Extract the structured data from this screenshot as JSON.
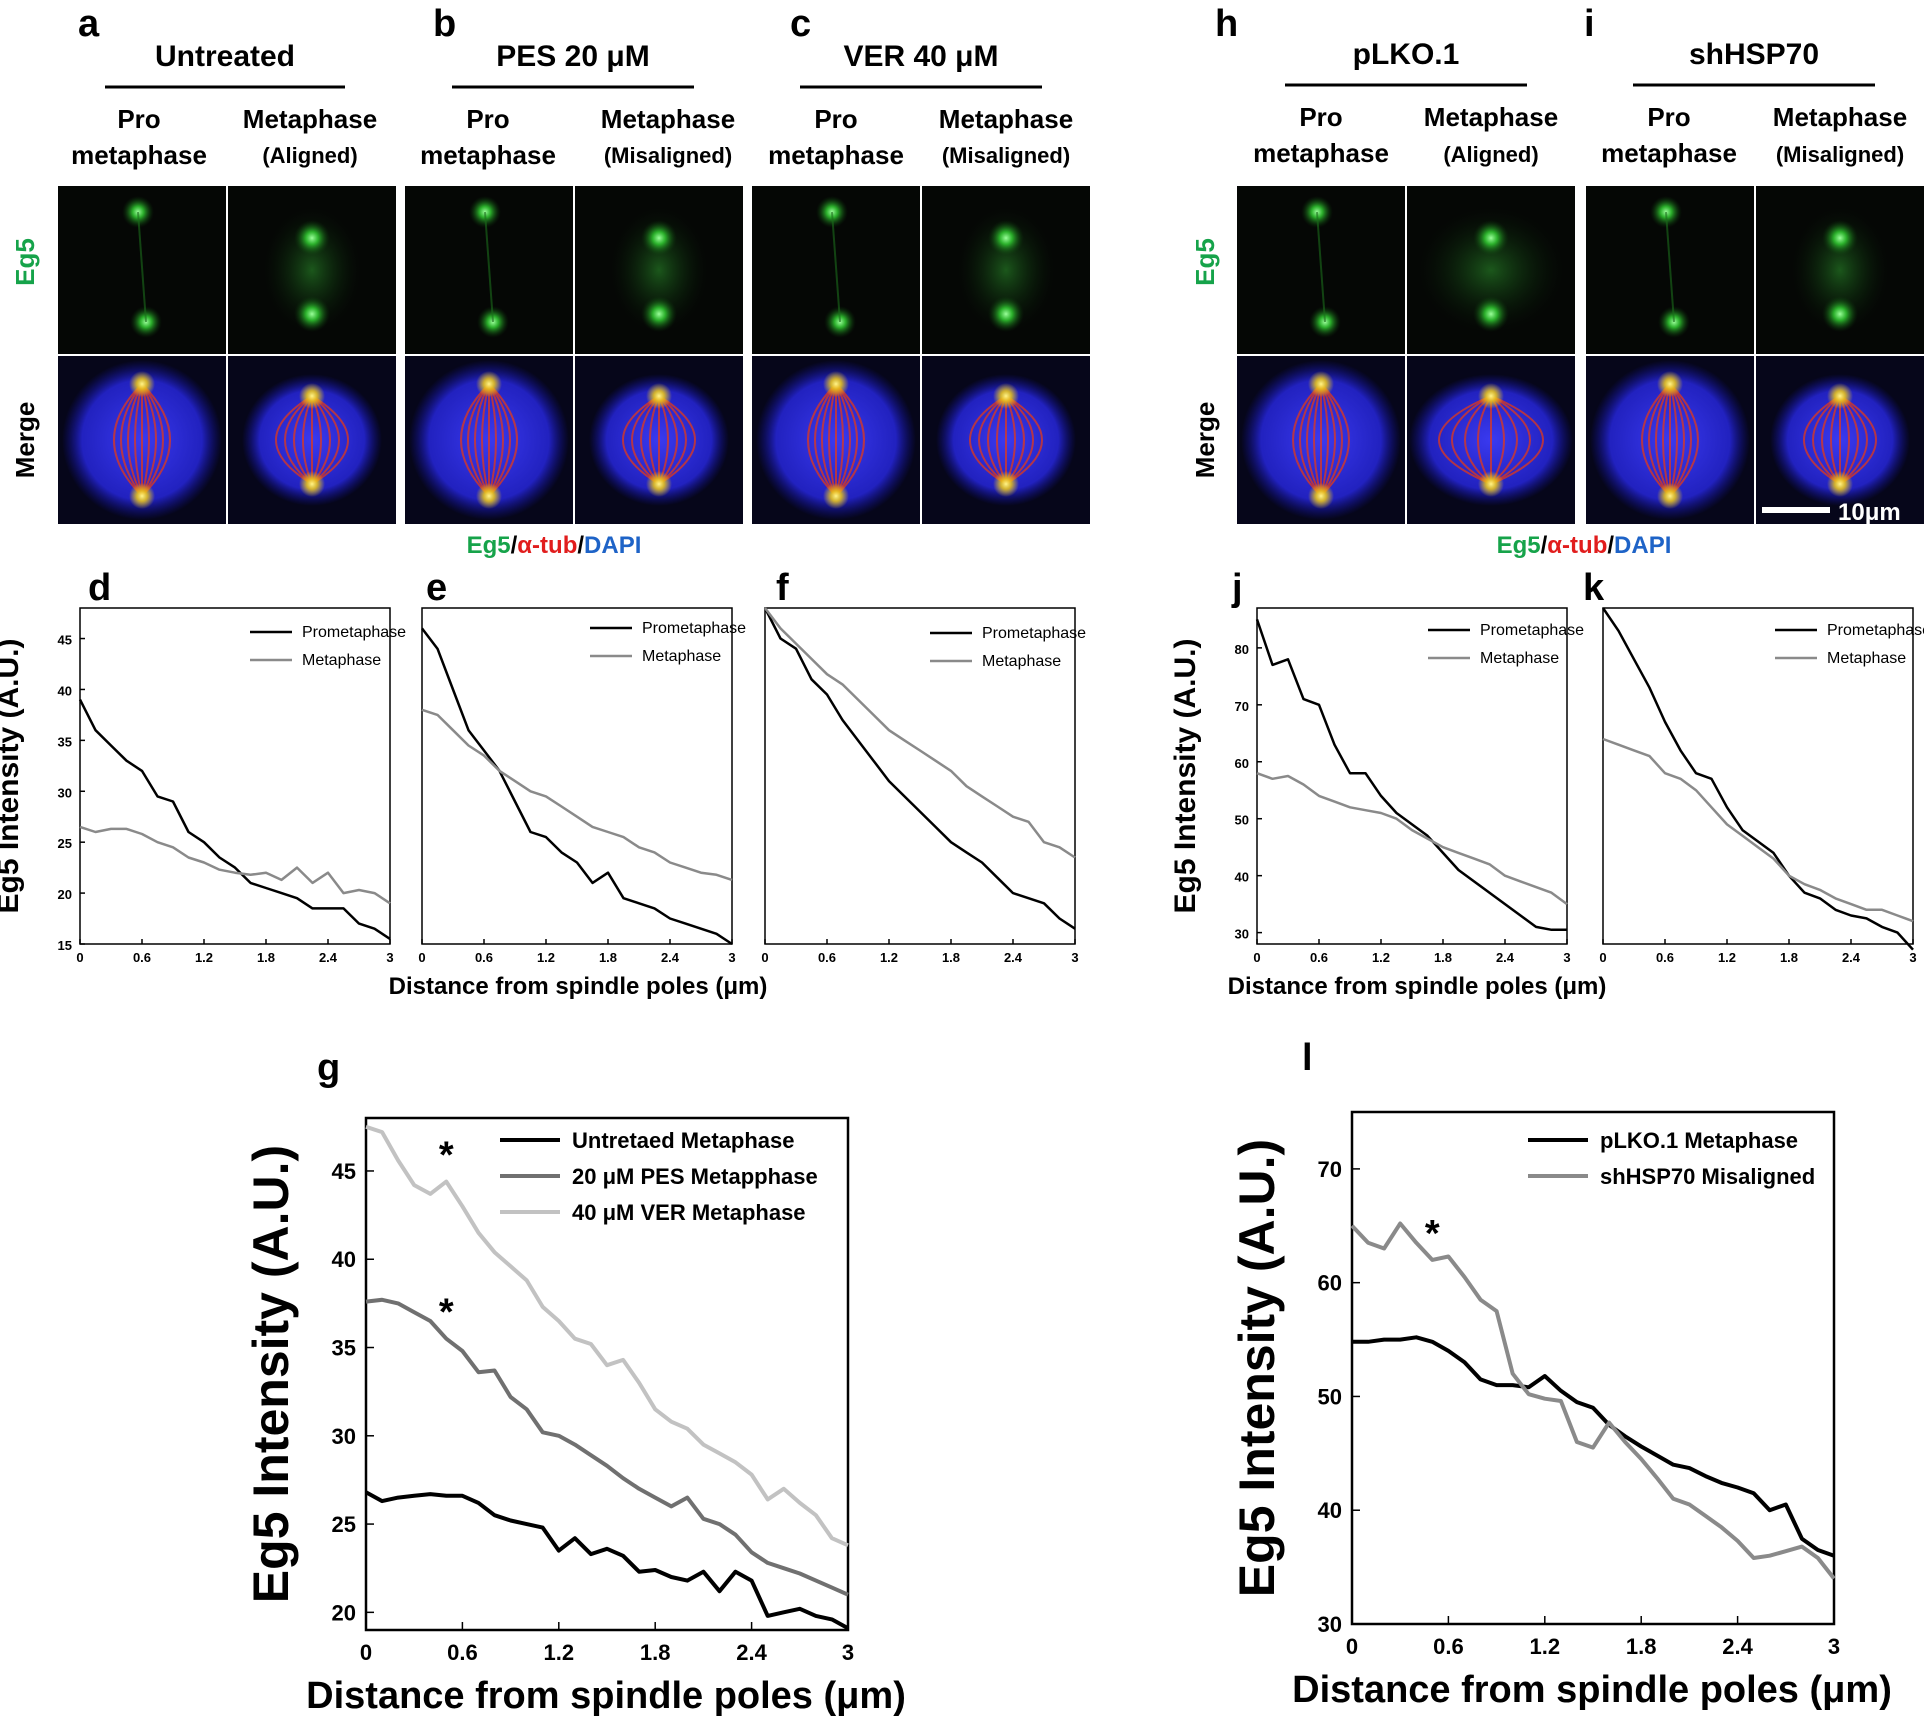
{
  "figure": {
    "panels_top_left": [
      {
        "letter": "a",
        "condition": "Untreated",
        "col1_line1": "Pro",
        "col1_line2": "metaphase",
        "col2_line1": "Metaphase",
        "col2_line2": "(Aligned)"
      },
      {
        "letter": "b",
        "condition": "PES 20 μM",
        "col1_line1": "Pro",
        "col1_line2": "metaphase",
        "col2_line1": "Metaphase",
        "col2_line2": "(Misaligned)"
      },
      {
        "letter": "c",
        "condition": "VER 40 μM",
        "col1_line1": "Pro",
        "col1_line2": "metaphase",
        "col2_line1": "Metaphase",
        "col2_line2": "(Misaligned)"
      }
    ],
    "panels_top_right": [
      {
        "letter": "h",
        "condition": "pLKO.1",
        "col1_line1": "Pro",
        "col1_line2": "metaphase",
        "col2_line1": "Metaphase",
        "col2_line2": "(Aligned)"
      },
      {
        "letter": "i",
        "condition": "shHSP70",
        "col1_line1": "Pro",
        "col1_line2": "metaphase",
        "col2_line1": "Metaphase",
        "col2_line2": "(Misaligned)"
      }
    ],
    "row_labels": {
      "eg5": "Eg5",
      "merge": "Merge"
    },
    "stain_legend": {
      "eg5": "Eg5",
      "slash": "/",
      "tub": "α-tub",
      "dapi": "DAPI"
    },
    "scale_bar": "10μm",
    "colors": {
      "green": "#16a34a",
      "red": "#e11d1d",
      "blue": "#1e63c7"
    }
  },
  "chart_data": [
    {
      "panel": "d",
      "type": "line",
      "ylabel": "Eg5 Intensity (A.U.)",
      "xlabel": "Distance from spindle poles (μm)",
      "xlim": [
        0,
        3
      ],
      "ylim": [
        15,
        48
      ],
      "yticks": [
        15,
        20,
        25,
        30,
        35,
        40,
        45
      ],
      "xticks": [
        "0",
        "0.6",
        "1.2",
        "1.8",
        "2.4",
        "3"
      ],
      "x": [
        0,
        0.15,
        0.3,
        0.45,
        0.6,
        0.75,
        0.9,
        1.05,
        1.2,
        1.35,
        1.5,
        1.65,
        1.8,
        1.95,
        2.1,
        2.25,
        2.4,
        2.55,
        2.7,
        2.85,
        3.0
      ],
      "series": [
        {
          "name": "Prometaphase",
          "color": "#000000",
          "values": [
            39,
            36,
            34.5,
            33,
            32,
            29.5,
            29,
            26,
            25,
            23.5,
            22.5,
            21,
            20.5,
            20,
            19.5,
            18.5,
            18.5,
            18.5,
            17,
            16.5,
            15.5
          ]
        },
        {
          "name": "Metaphase",
          "color": "#8a8a8a",
          "values": [
            26.5,
            26,
            26.3,
            26.3,
            25.8,
            25,
            24.5,
            23.5,
            23,
            22.3,
            22,
            21.8,
            22,
            21.3,
            22.5,
            21,
            22,
            20,
            20.3,
            20,
            19
          ]
        }
      ]
    },
    {
      "panel": "e",
      "type": "line",
      "ylabel": "",
      "xlabel": "",
      "xlim": [
        0,
        3
      ],
      "ylim": [
        15,
        48
      ],
      "yticks": [],
      "xticks": [
        "0",
        "0.6",
        "1.2",
        "1.8",
        "2.4",
        "3"
      ],
      "x": [
        0,
        0.15,
        0.3,
        0.45,
        0.6,
        0.75,
        0.9,
        1.05,
        1.2,
        1.35,
        1.5,
        1.65,
        1.8,
        1.95,
        2.1,
        2.25,
        2.4,
        2.55,
        2.7,
        2.85,
        3.0
      ],
      "series": [
        {
          "name": "Prometaphase",
          "color": "#000000",
          "values": [
            46,
            44,
            40,
            36,
            34,
            32,
            29,
            26,
            25.5,
            24,
            23,
            21,
            22,
            19.5,
            19,
            18.5,
            17.5,
            17,
            16.5,
            16,
            15
          ]
        },
        {
          "name": "Metaphase",
          "color": "#8a8a8a",
          "values": [
            38,
            37.5,
            36,
            34.5,
            33.5,
            32,
            31,
            30,
            29.5,
            28.5,
            27.5,
            26.5,
            26,
            25.5,
            24.5,
            24,
            23,
            22.5,
            22,
            21.8,
            21.3
          ]
        }
      ]
    },
    {
      "panel": "f",
      "type": "line",
      "ylabel": "",
      "xlabel": "",
      "xlim": [
        0,
        3
      ],
      "ylim": [
        15,
        48
      ],
      "yticks": [],
      "xticks": [
        "0",
        "0.6",
        "1.2",
        "1.8",
        "2.4",
        "3"
      ],
      "x": [
        0,
        0.15,
        0.3,
        0.45,
        0.6,
        0.75,
        0.9,
        1.05,
        1.2,
        1.35,
        1.5,
        1.65,
        1.8,
        1.95,
        2.1,
        2.25,
        2.4,
        2.55,
        2.7,
        2.85,
        3.0
      ],
      "series": [
        {
          "name": "Prometaphase",
          "color": "#000000",
          "values": [
            48,
            45,
            44,
            41,
            39.5,
            37,
            35,
            33,
            31,
            29.5,
            28,
            26.5,
            25,
            24,
            23,
            21.5,
            20,
            19.5,
            19,
            17.5,
            16.5
          ]
        },
        {
          "name": "Metaphase",
          "color": "#8a8a8a",
          "values": [
            48,
            46,
            44.5,
            43,
            41.5,
            40.5,
            39,
            37.5,
            36,
            35,
            34,
            33,
            32,
            30.5,
            29.5,
            28.5,
            27.5,
            27,
            25,
            24.5,
            23.5
          ]
        }
      ]
    },
    {
      "panel": "j",
      "type": "line",
      "ylabel": "Eg5 Intensity (A.U.)",
      "xlabel": "Distance from spindle poles (μm)",
      "xlim": [
        0,
        3
      ],
      "ylim": [
        28,
        87
      ],
      "yticks": [
        30,
        40,
        50,
        60,
        70,
        80
      ],
      "xticks": [
        "0",
        "0.6",
        "1.2",
        "1.8",
        "2.4",
        "3"
      ],
      "x": [
        0,
        0.15,
        0.3,
        0.45,
        0.6,
        0.75,
        0.9,
        1.05,
        1.2,
        1.35,
        1.5,
        1.65,
        1.8,
        1.95,
        2.1,
        2.25,
        2.4,
        2.55,
        2.7,
        2.85,
        3.0
      ],
      "series": [
        {
          "name": "Prometaphase",
          "color": "#000000",
          "values": [
            85,
            77,
            78,
            71,
            70,
            63,
            58,
            58,
            54,
            51,
            49,
            47,
            44,
            41,
            39,
            37,
            35,
            33,
            31,
            30.5,
            30.5
          ]
        },
        {
          "name": "Metaphase",
          "color": "#8a8a8a",
          "values": [
            58,
            57,
            57.5,
            56,
            54,
            53,
            52,
            51.5,
            51,
            50,
            48,
            46.5,
            45,
            44,
            43,
            42,
            40,
            39,
            38,
            37,
            35
          ]
        }
      ]
    },
    {
      "panel": "k",
      "type": "line",
      "ylabel": "",
      "xlabel": "",
      "xlim": [
        0,
        3
      ],
      "ylim": [
        28,
        87
      ],
      "yticks": [],
      "xticks": [
        "0",
        "0.6",
        "1.2",
        "1.8",
        "2.4",
        "3"
      ],
      "x": [
        0,
        0.15,
        0.3,
        0.45,
        0.6,
        0.75,
        0.9,
        1.05,
        1.2,
        1.35,
        1.5,
        1.65,
        1.8,
        1.95,
        2.1,
        2.25,
        2.4,
        2.55,
        2.7,
        2.85,
        3.0
      ],
      "series": [
        {
          "name": "Prometaphase",
          "color": "#000000",
          "values": [
            87,
            83,
            78,
            73,
            67,
            62,
            58,
            57,
            52,
            48,
            46,
            44,
            40,
            37,
            36,
            34,
            33,
            32.5,
            31,
            30,
            27
          ]
        },
        {
          "name": "Metaphase",
          "color": "#8a8a8a",
          "values": [
            64,
            63,
            62,
            61,
            58,
            57,
            55,
            52,
            49,
            47,
            45,
            43,
            40,
            38.5,
            37.5,
            36,
            35,
            34,
            34,
            33,
            32
          ]
        }
      ]
    },
    {
      "panel": "g",
      "type": "line",
      "ylabel": "Eg5 Intensity (A.U.)",
      "xlabel": "Distance from spindle poles (μm)",
      "xlim": [
        0,
        3
      ],
      "ylim": [
        19,
        48
      ],
      "yticks": [
        20,
        25,
        30,
        35,
        40,
        45
      ],
      "xticks": [
        "0",
        "0.6",
        "1.2",
        "1.8",
        "2.4",
        "3"
      ],
      "x": [
        0,
        0.1,
        0.2,
        0.3,
        0.4,
        0.5,
        0.6,
        0.7,
        0.8,
        0.9,
        1.0,
        1.1,
        1.2,
        1.3,
        1.4,
        1.5,
        1.6,
        1.7,
        1.8,
        1.9,
        2.0,
        2.1,
        2.2,
        2.3,
        2.4,
        2.5,
        2.6,
        2.7,
        2.8,
        2.9,
        3.0
      ],
      "series": [
        {
          "name": "Untretaed Metaphase",
          "color": "#000000",
          "values": [
            26.8,
            26.3,
            26.5,
            26.6,
            26.7,
            26.6,
            26.6,
            26.2,
            25.5,
            25.2,
            25,
            24.8,
            23.5,
            24.2,
            23.3,
            23.6,
            23.2,
            22.3,
            22.4,
            22,
            21.8,
            22.3,
            21.2,
            22.3,
            21.8,
            19.8,
            20,
            20.2,
            19.8,
            19.6,
            19.1
          ]
        },
        {
          "name": "20 μM PES Metapphase",
          "color": "#707070",
          "values": [
            37.6,
            37.7,
            37.5,
            37,
            36.5,
            35.5,
            34.8,
            33.6,
            33.7,
            32.2,
            31.5,
            30.2,
            30,
            29.5,
            28.9,
            28.3,
            27.6,
            27,
            26.5,
            26,
            26.5,
            25.3,
            25,
            24.4,
            23.4,
            22.8,
            22.5,
            22.2,
            21.8,
            21.4,
            21
          ]
        },
        {
          "name": "40 μM VER Metaphase",
          "color": "#c2c2c2",
          "values": [
            47.5,
            47.2,
            45.6,
            44.2,
            43.7,
            44.4,
            43,
            41.5,
            40.4,
            39.6,
            38.8,
            37.3,
            36.5,
            35.5,
            35.2,
            34,
            34.3,
            33,
            31.5,
            30.8,
            30.4,
            29.5,
            29,
            28.5,
            27.8,
            26.4,
            27,
            26.2,
            25.5,
            24.2,
            23.8
          ]
        }
      ],
      "annotations": [
        {
          "text": "*",
          "series": "40 μM VER Metaphase"
        },
        {
          "text": "*",
          "series": "20 μM PES Metapphase"
        }
      ]
    },
    {
      "panel": "l",
      "type": "line",
      "ylabel": "Eg5 Intensity (A.U.)",
      "xlabel": "Distance from spindle poles (μm)",
      "xlim": [
        0,
        3
      ],
      "ylim": [
        30,
        75
      ],
      "yticks": [
        30,
        40,
        50,
        60,
        70
      ],
      "xticks": [
        "0",
        "0.6",
        "1.2",
        "1.8",
        "2.4",
        "3"
      ],
      "x": [
        0,
        0.1,
        0.2,
        0.3,
        0.4,
        0.5,
        0.6,
        0.7,
        0.8,
        0.9,
        1.0,
        1.1,
        1.2,
        1.3,
        1.4,
        1.5,
        1.6,
        1.7,
        1.8,
        1.9,
        2.0,
        2.1,
        2.2,
        2.3,
        2.4,
        2.5,
        2.6,
        2.7,
        2.8,
        2.9,
        3.0
      ],
      "series": [
        {
          "name": "pLKO.1 Metaphase",
          "color": "#000000",
          "values": [
            54.8,
            54.8,
            55,
            55,
            55.2,
            54.8,
            54,
            53,
            51.5,
            51,
            51,
            50.8,
            51.8,
            50.5,
            49.5,
            49,
            47.5,
            46.5,
            45.6,
            44.8,
            44,
            43.7,
            43,
            42.4,
            42,
            41.5,
            40,
            40.5,
            37.5,
            36.5,
            36
          ]
        },
        {
          "name": "shHSP70 Misaligned",
          "color": "#8a8a8a",
          "values": [
            65,
            63.5,
            63,
            65.2,
            63.5,
            62,
            62.3,
            60.5,
            58.5,
            57.5,
            52,
            50.2,
            49.8,
            49.6,
            46,
            45.5,
            47.7,
            46,
            44.5,
            42.8,
            41,
            40.5,
            39.5,
            38.5,
            37.3,
            35.8,
            36,
            36.4,
            36.8,
            35.8,
            34
          ]
        }
      ],
      "annotations": [
        {
          "text": "*",
          "series": "shHSP70 Misaligned"
        }
      ]
    }
  ]
}
